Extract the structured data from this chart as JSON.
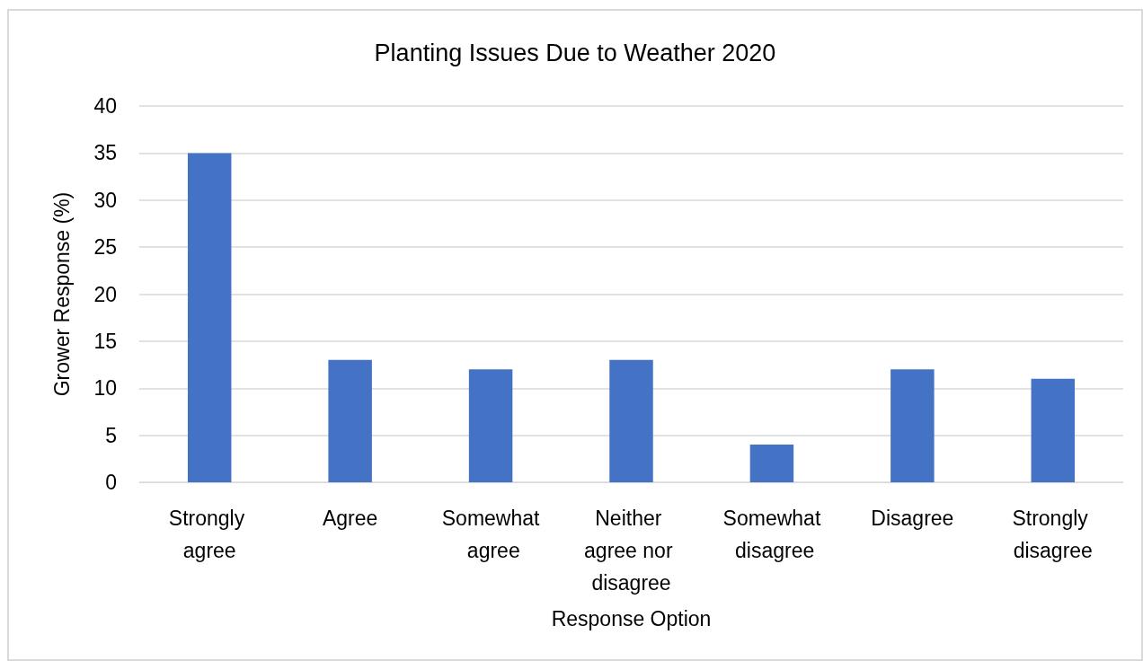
{
  "chart_data": {
    "type": "bar",
    "title": "Planting Issues Due to Weather 2020",
    "xlabel": "Response Option",
    "ylabel": "Grower Response (%)",
    "categories": [
      "Strongly agree",
      "Agree",
      "Somewhat agree",
      "Neither agree nor disagree",
      "Somewhat disagree",
      "Disagree",
      "Strongly disagree"
    ],
    "values": [
      35,
      13,
      12,
      13,
      4,
      12,
      11
    ],
    "color": "#4472c4",
    "ylim": [
      0,
      40
    ],
    "yticks": [
      0,
      5,
      10,
      15,
      20,
      25,
      30,
      35,
      40
    ],
    "grid": "y"
  }
}
